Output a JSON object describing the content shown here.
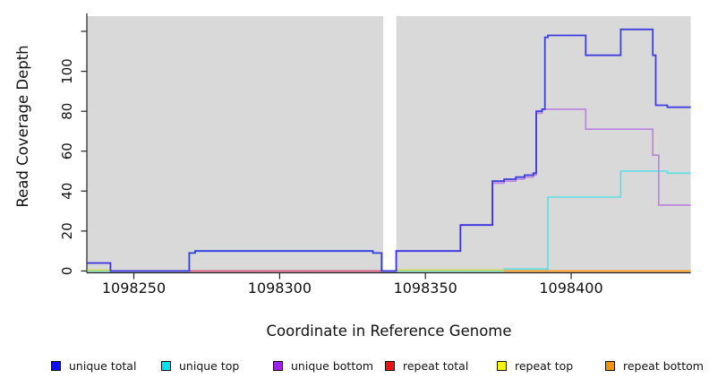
{
  "figure": {
    "xlabel": "Coordinate in Reference Genome",
    "ylabel": "Read Coverage Depth"
  },
  "chart_data": {
    "type": "line",
    "subtype": "step-coverage",
    "title": "",
    "xlabel": "Coordinate in Reference Genome",
    "ylabel": "Read Coverage Depth",
    "xlim": [
      1098234,
      1098441
    ],
    "ylim": [
      0,
      127
    ],
    "x_ticks": [
      1098250,
      1098300,
      1098350,
      1098400
    ],
    "x_tick_labels": [
      "1098250",
      "1098300",
      "1098350",
      "1098400"
    ],
    "y_ticks": [
      0,
      20,
      40,
      60,
      80,
      100,
      120
    ],
    "y_tick_labels": [
      "0",
      "20",
      "40",
      "60",
      "80",
      "100",
      ""
    ],
    "plot_bg": "#d9d9d9",
    "grid": false,
    "legend_position": "bottom",
    "masked_region": {
      "x_start": 1098335.5,
      "x_end": 1098340
    },
    "series": [
      {
        "name": "unique top",
        "color": "#58dfe6",
        "width": 1.6,
        "opacity": 1,
        "segments": [
          [
            [
              1098234,
              0
            ],
            [
              1098269,
              9
            ],
            [
              1098271,
              10
            ],
            [
              1098332,
              9
            ],
            [
              1098335,
              0
            ],
            [
              1098377,
              1
            ],
            [
              1098392,
              37
            ],
            [
              1098417,
              50
            ],
            [
              1098433,
              49
            ],
            [
              1098441,
              49
            ]
          ]
        ]
      },
      {
        "name": "unique bottom",
        "color": "#bb80e0",
        "width": 1.6,
        "opacity": 1,
        "segments": [
          [
            [
              1098234,
              4
            ],
            [
              1098242,
              0
            ],
            [
              1098340,
              10
            ],
            [
              1098362,
              23
            ],
            [
              1098373,
              44
            ],
            [
              1098377,
              45
            ],
            [
              1098381,
              46
            ],
            [
              1098384,
              47
            ],
            [
              1098387,
              48
            ],
            [
              1098388,
              79
            ],
            [
              1098390,
              81
            ],
            [
              1098405,
              71
            ],
            [
              1098428,
              58
            ],
            [
              1098430,
              33
            ],
            [
              1098441,
              33
            ]
          ]
        ]
      },
      {
        "name": "repeat total",
        "color": "#e0506e",
        "width": 1.5,
        "opacity": 1,
        "segments": [
          [
            [
              1098269,
              0
            ],
            [
              1098335,
              0
            ]
          ]
        ]
      },
      {
        "name": "repeat top",
        "color": "#d9d936",
        "width": 1.5,
        "opacity": 1,
        "segments": [
          [
            [
              1098234,
              0
            ],
            [
              1098242,
              0
            ]
          ],
          [
            [
              1098340,
              0
            ],
            [
              1098377,
              0
            ]
          ]
        ]
      },
      {
        "name": "repeat bottom",
        "color": "#ff9614",
        "width": 1.7,
        "opacity": 1,
        "segments": [
          [
            [
              1098377,
              0
            ],
            [
              1098441,
              0
            ]
          ]
        ]
      },
      {
        "name": "unique total",
        "color": "#2828e0",
        "width": 1.8,
        "opacity": 0.88,
        "segments": [
          [
            [
              1098234,
              4
            ],
            [
              1098242,
              0
            ],
            [
              1098269,
              9
            ],
            [
              1098271,
              10
            ],
            [
              1098332,
              9
            ],
            [
              1098335,
              0
            ],
            [
              1098340,
              10
            ],
            [
              1098362,
              23
            ],
            [
              1098373,
              45
            ],
            [
              1098377,
              46
            ],
            [
              1098381,
              47
            ],
            [
              1098384,
              48
            ],
            [
              1098387,
              49
            ],
            [
              1098388,
              80
            ],
            [
              1098390,
              81
            ],
            [
              1098391,
              117
            ],
            [
              1098392,
              118
            ],
            [
              1098405,
              108
            ],
            [
              1098417,
              121
            ],
            [
              1098428,
              108
            ],
            [
              1098429,
              83
            ],
            [
              1098433,
              82
            ],
            [
              1098441,
              82
            ]
          ]
        ]
      }
    ]
  },
  "legend": {
    "items": [
      {
        "label": "unique total",
        "color": "#0d0dee"
      },
      {
        "label": "unique top",
        "color": "#00e3e8"
      },
      {
        "label": "unique bottom",
        "color": "#a020e8"
      },
      {
        "label": "repeat total",
        "color": "#ee1111"
      },
      {
        "label": "repeat top",
        "color": "#f5f50a"
      },
      {
        "label": "repeat bottom",
        "color": "#f59300"
      }
    ]
  }
}
